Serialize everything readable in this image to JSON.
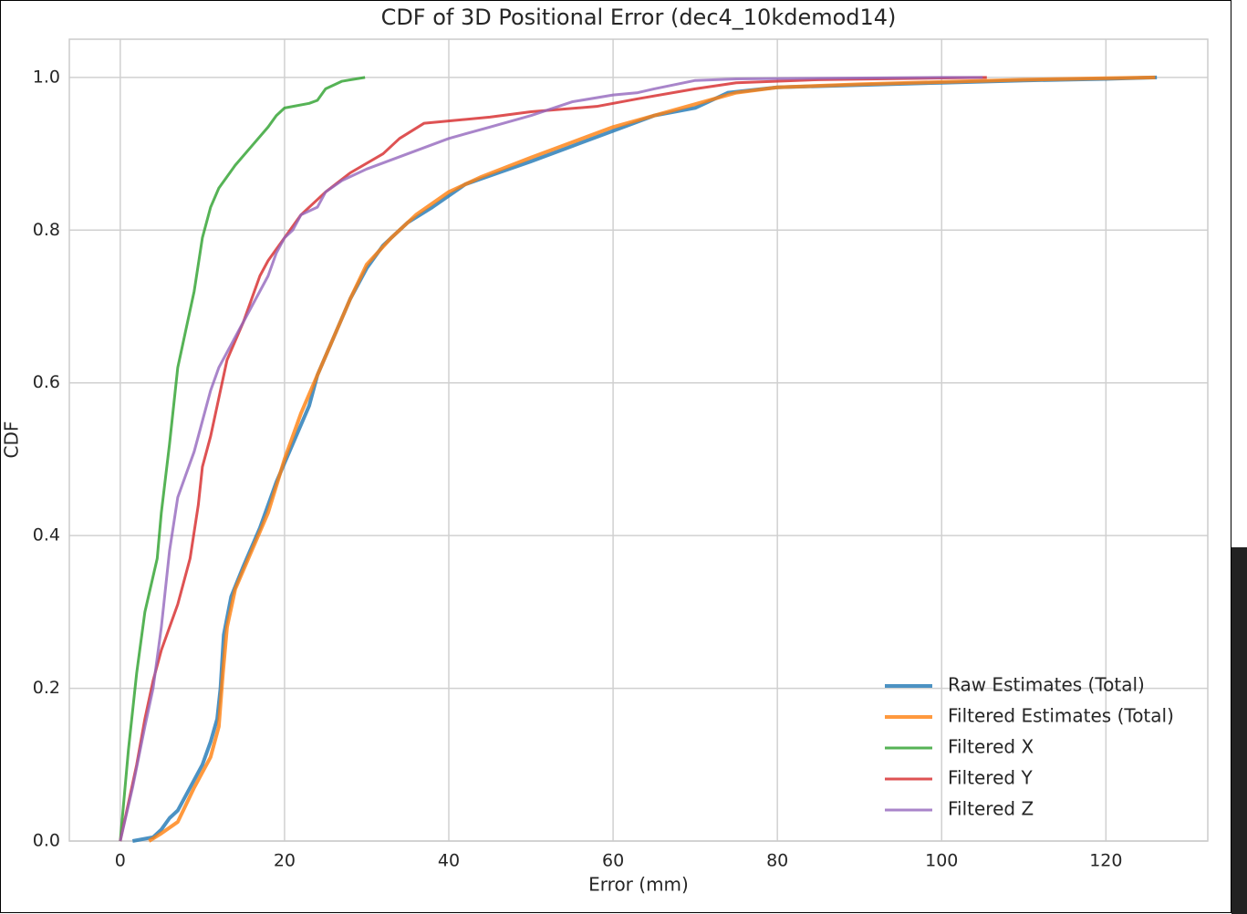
{
  "chart_data": {
    "type": "line",
    "title": "CDF of 3D Positional Error (dec4_10kdemod14)",
    "x_label": "Error (mm)",
    "y_label": "CDF",
    "xlim": [
      -6.2,
      132.4
    ],
    "ylim": [
      0,
      1.05
    ],
    "xticks": [
      0,
      20,
      40,
      60,
      80,
      100,
      120
    ],
    "yticks": [
      {
        "value": 0,
        "label": "0.0"
      },
      {
        "value": 0.2,
        "label": "0.2"
      },
      {
        "value": 0.4,
        "label": "0.4"
      },
      {
        "value": 0.6,
        "label": "0.6"
      },
      {
        "value": 0.8,
        "label": "0.8"
      },
      {
        "value": 1,
        "label": "1.0"
      }
    ],
    "grid": true,
    "legend": "lower right",
    "series": [
      {
        "name": "Raw Estimates (Total)",
        "color": "#1f77b4",
        "x": [
          1.5,
          4,
          5,
          6,
          7,
          8,
          9,
          10,
          11,
          11.8,
          12.2,
          12.6,
          13.5,
          15,
          17,
          19,
          21,
          23,
          24,
          26,
          28,
          30,
          32,
          35,
          38,
          42,
          46,
          50,
          55,
          60,
          65,
          70,
          74,
          80,
          90,
          100,
          110,
          120,
          126.2
        ],
        "values": [
          0,
          0.005,
          0.015,
          0.03,
          0.04,
          0.06,
          0.08,
          0.1,
          0.13,
          0.16,
          0.2,
          0.27,
          0.32,
          0.36,
          0.41,
          0.47,
          0.52,
          0.57,
          0.61,
          0.66,
          0.71,
          0.75,
          0.78,
          0.81,
          0.83,
          0.86,
          0.875,
          0.89,
          0.91,
          0.93,
          0.95,
          0.96,
          0.98,
          0.987,
          0.99,
          0.993,
          0.996,
          0.998,
          1.0
        ]
      },
      {
        "name": "Filtered Estimates (Total)",
        "color": "#ff7f0e",
        "x": [
          3.5,
          5,
          7,
          9,
          11,
          12,
          12.5,
          13,
          14,
          16,
          18,
          20,
          22,
          24,
          26,
          28,
          30,
          33,
          36,
          40,
          44,
          50,
          55,
          60,
          65,
          70,
          75,
          80,
          90,
          100,
          110,
          120,
          126
        ],
        "values": [
          0,
          0.01,
          0.025,
          0.07,
          0.11,
          0.15,
          0.22,
          0.28,
          0.33,
          0.38,
          0.43,
          0.5,
          0.56,
          0.61,
          0.66,
          0.71,
          0.755,
          0.79,
          0.82,
          0.85,
          0.87,
          0.895,
          0.915,
          0.935,
          0.95,
          0.965,
          0.98,
          0.987,
          0.991,
          0.994,
          0.997,
          0.999,
          1.0
        ]
      },
      {
        "name": "Filtered X",
        "color": "#2ca02c",
        "x": [
          0,
          1,
          2,
          3,
          4.5,
          5,
          6,
          7,
          8,
          9,
          10,
          11,
          12,
          14,
          16,
          18,
          19,
          20,
          23,
          24,
          25,
          27,
          29.8
        ],
        "values": [
          0,
          0.12,
          0.22,
          0.3,
          0.37,
          0.43,
          0.52,
          0.62,
          0.67,
          0.72,
          0.79,
          0.83,
          0.855,
          0.885,
          0.91,
          0.935,
          0.95,
          0.96,
          0.966,
          0.97,
          0.985,
          0.995,
          1.0
        ]
      },
      {
        "name": "Filtered Y",
        "color": "#d62728",
        "x": [
          0,
          2,
          3,
          4,
          5,
          7,
          8.5,
          9.5,
          10,
          11,
          12,
          13,
          15,
          17,
          18,
          20,
          22,
          25,
          28,
          32,
          34,
          37,
          45,
          50,
          58,
          63,
          70,
          75,
          85,
          105.5
        ],
        "values": [
          0,
          0.1,
          0.16,
          0.21,
          0.25,
          0.31,
          0.37,
          0.44,
          0.49,
          0.53,
          0.58,
          0.63,
          0.68,
          0.74,
          0.76,
          0.79,
          0.82,
          0.85,
          0.875,
          0.9,
          0.92,
          0.94,
          0.948,
          0.955,
          0.962,
          0.972,
          0.985,
          0.993,
          0.997,
          1.0
        ]
      },
      {
        "name": "Filtered Z",
        "color": "#9467bd",
        "x": [
          0,
          1.5,
          3,
          4,
          5,
          6,
          7,
          8,
          9,
          10,
          11,
          12,
          14,
          16,
          18,
          19,
          20,
          21,
          22,
          24,
          25,
          27,
          30,
          35,
          40,
          45,
          50,
          55,
          60,
          63,
          65,
          70,
          75,
          100,
          105
        ],
        "values": [
          0,
          0.07,
          0.15,
          0.2,
          0.28,
          0.38,
          0.45,
          0.48,
          0.51,
          0.55,
          0.59,
          0.62,
          0.66,
          0.7,
          0.74,
          0.77,
          0.79,
          0.8,
          0.82,
          0.83,
          0.85,
          0.865,
          0.88,
          0.9,
          0.92,
          0.935,
          0.95,
          0.968,
          0.977,
          0.98,
          0.985,
          0.996,
          0.998,
          1.0,
          1.0
        ]
      }
    ]
  }
}
